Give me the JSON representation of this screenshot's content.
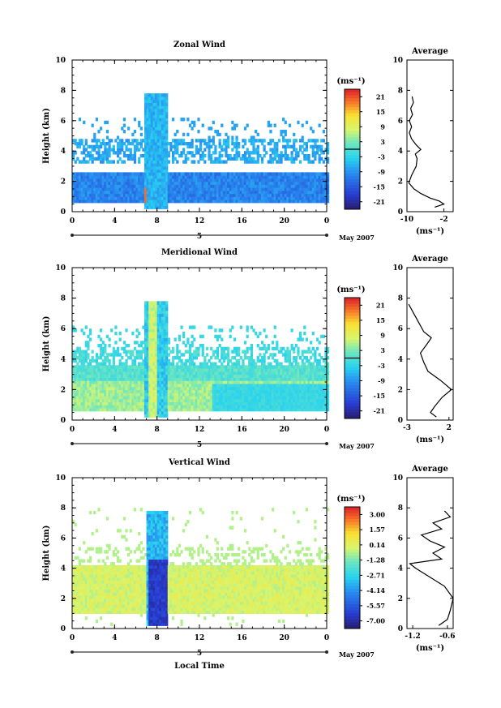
{
  "figure": {
    "date_label": "May 2007",
    "day_label": "5",
    "xlabel": "Local Time",
    "ylabel": "Height (km)",
    "unit_label": "(ms⁻¹)",
    "average_title": "Average"
  },
  "chart_data": [
    {
      "type": "heatmap",
      "title": "Zonal Wind",
      "xlabel": "Local Time",
      "ylabel": "Height (km)",
      "xlim": [
        0,
        24
      ],
      "ylim": [
        0,
        10
      ],
      "xticks": [
        "0",
        "4",
        "8",
        "12",
        "16",
        "20",
        "0"
      ],
      "yticks": [
        "0",
        "2",
        "4",
        "6",
        "8",
        "10"
      ],
      "colorbar": {
        "unit": "(ms⁻¹)",
        "ticks": [
          "21",
          "15",
          "9",
          "3",
          "-3",
          "-9",
          "-15",
          "-21"
        ],
        "range": [
          -24,
          24
        ],
        "zero_line": true
      },
      "average": {
        "title": "Average",
        "xlabel": "(ms⁻¹)",
        "xticks": [
          "-10",
          "-2"
        ],
        "xlim": [
          -10,
          0
        ],
        "ylim": [
          0,
          10
        ],
        "yticks": [
          "0",
          "2",
          "4",
          "6",
          "8",
          "10"
        ],
        "profile": [
          [
            -4,
            0.3
          ],
          [
            -2,
            0.5
          ],
          [
            -3,
            0.7
          ],
          [
            -5,
            0.9
          ],
          [
            -7,
            1.2
          ],
          [
            -8.5,
            1.5
          ],
          [
            -9.6,
            1.9
          ],
          [
            -9.0,
            2.4
          ],
          [
            -8.0,
            3.0
          ],
          [
            -7.8,
            3.5
          ],
          [
            -8.2,
            3.8
          ],
          [
            -7.0,
            4.1
          ],
          [
            -8.0,
            4.4
          ],
          [
            -9.0,
            4.8
          ],
          [
            -9.5,
            5.2
          ],
          [
            -9.0,
            5.6
          ],
          [
            -9.5,
            6.0
          ],
          [
            -8.8,
            6.4
          ],
          [
            -9.2,
            6.8
          ],
          [
            -8.6,
            7.2
          ],
          [
            -8.9,
            7.6
          ]
        ]
      }
    },
    {
      "type": "heatmap",
      "title": "Meridional Wind",
      "xlabel": "Local Time",
      "ylabel": "Height (km)",
      "xlim": [
        0,
        24
      ],
      "ylim": [
        0,
        10
      ],
      "xticks": [
        "0",
        "4",
        "8",
        "12",
        "16",
        "20",
        "0"
      ],
      "yticks": [
        "0",
        "2",
        "4",
        "6",
        "8",
        "10"
      ],
      "colorbar": {
        "unit": "(ms⁻¹)",
        "ticks": [
          "21",
          "15",
          "9",
          "3",
          "-3",
          "-9",
          "-15",
          "-21"
        ],
        "range": [
          -24,
          24
        ],
        "zero_line": true
      },
      "average": {
        "title": "Average",
        "xlabel": "(ms⁻¹)",
        "xticks": [
          "-3",
          "2"
        ],
        "xlim": [
          -3,
          2.5
        ],
        "ylim": [
          0,
          10
        ],
        "yticks": [
          "0",
          "2",
          "4",
          "6",
          "8",
          "10"
        ],
        "profile": [
          [
            0.5,
            0.2
          ],
          [
            -0.2,
            0.5
          ],
          [
            0.3,
            0.9
          ],
          [
            1.2,
            1.5
          ],
          [
            2.3,
            2.0
          ],
          [
            1.0,
            2.6
          ],
          [
            -0.5,
            3.2
          ],
          [
            -1.0,
            3.8
          ],
          [
            -1.4,
            4.4
          ],
          [
            -0.6,
            5.0
          ],
          [
            -0.1,
            5.4
          ],
          [
            -1.0,
            5.8
          ],
          [
            -1.6,
            6.4
          ],
          [
            -2.2,
            7.0
          ],
          [
            -2.8,
            7.6
          ]
        ]
      }
    },
    {
      "type": "heatmap",
      "title": "Vertical Wind",
      "xlabel": "Local Time",
      "ylabel": "Height (km)",
      "xlim": [
        0,
        24
      ],
      "ylim": [
        0,
        10
      ],
      "xticks": [
        "0",
        "4",
        "8",
        "12",
        "16",
        "20",
        "0"
      ],
      "yticks": [
        "0",
        "2",
        "4",
        "6",
        "8",
        "10"
      ],
      "colorbar": {
        "unit": "(ms⁻¹)",
        "ticks": [
          "3.00",
          "1.57",
          "0.14",
          "-1.28",
          "-2.71",
          "-4.14",
          "-5.57",
          "-7.00"
        ],
        "range": [
          -7.7,
          3.7
        ],
        "zero_line": false
      },
      "average": {
        "title": "Average",
        "xlabel": "(ms⁻¹)",
        "xticks": [
          "-1.2",
          "-0.6"
        ],
        "xlim": [
          -1.3,
          -0.5
        ],
        "ylim": [
          0,
          10
        ],
        "yticks": [
          "0",
          "2",
          "4",
          "6",
          "8",
          "10"
        ],
        "profile": [
          [
            -0.75,
            0.2
          ],
          [
            -0.6,
            0.6
          ],
          [
            -0.55,
            1.2
          ],
          [
            -0.5,
            2.0
          ],
          [
            -0.65,
            2.8
          ],
          [
            -0.9,
            3.4
          ],
          [
            -1.15,
            4.0
          ],
          [
            -1.25,
            4.3
          ],
          [
            -0.7,
            4.6
          ],
          [
            -0.85,
            5.0
          ],
          [
            -0.65,
            5.4
          ],
          [
            -0.9,
            5.8
          ],
          [
            -1.05,
            6.2
          ],
          [
            -0.7,
            6.6
          ],
          [
            -0.85,
            7.0
          ],
          [
            -0.55,
            7.4
          ],
          [
            -0.65,
            7.8
          ]
        ]
      }
    }
  ]
}
